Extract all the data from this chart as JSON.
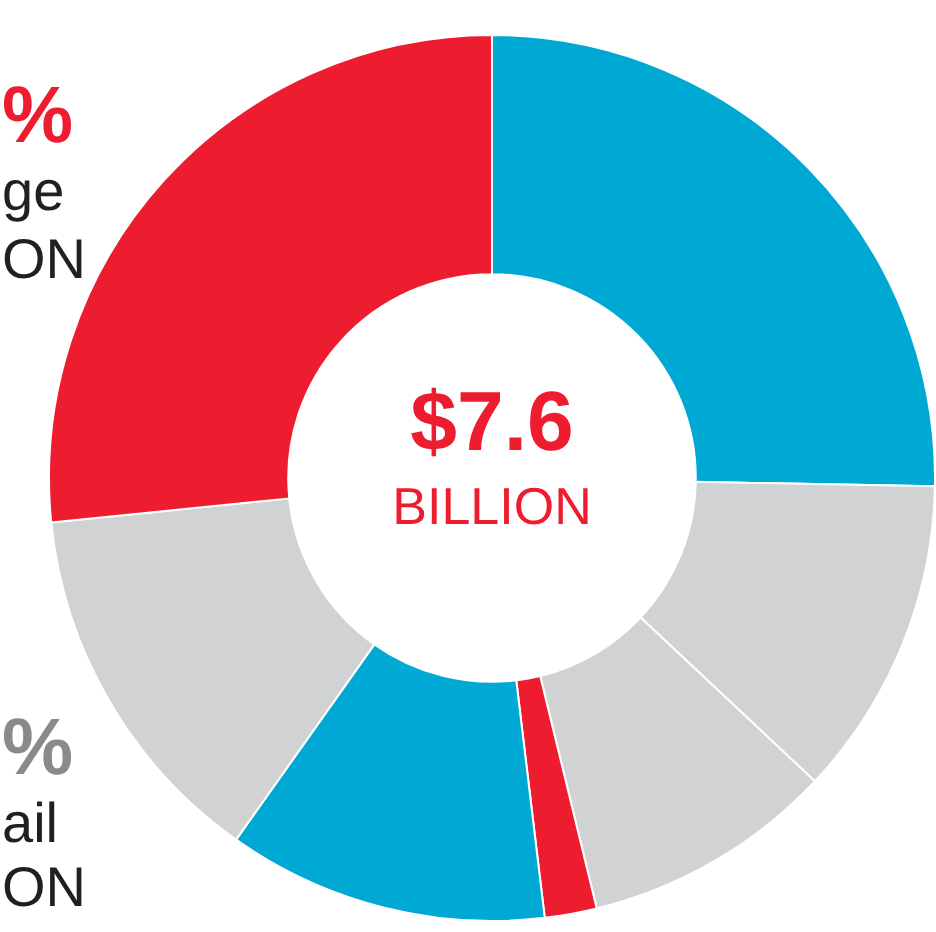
{
  "chart_data": {
    "type": "donut",
    "title": "$7.6",
    "subtitle": "BILLION",
    "categories": [
      null,
      null,
      null,
      null,
      null,
      null,
      null
    ],
    "values": [
      25.3,
      11.7,
      9.2,
      1.9,
      11.7,
      13.6,
      26.6
    ],
    "colors": [
      "#00a9d4",
      "#d1d2d4",
      "#d1d2d4",
      "#ed1c2e",
      "#00a9d4",
      "#d1d2d4",
      "#ed1c2e"
    ],
    "annotations": [
      "%",
      "ge",
      "ON",
      "%",
      "ail",
      "ON"
    ],
    "legend": false
  }
}
